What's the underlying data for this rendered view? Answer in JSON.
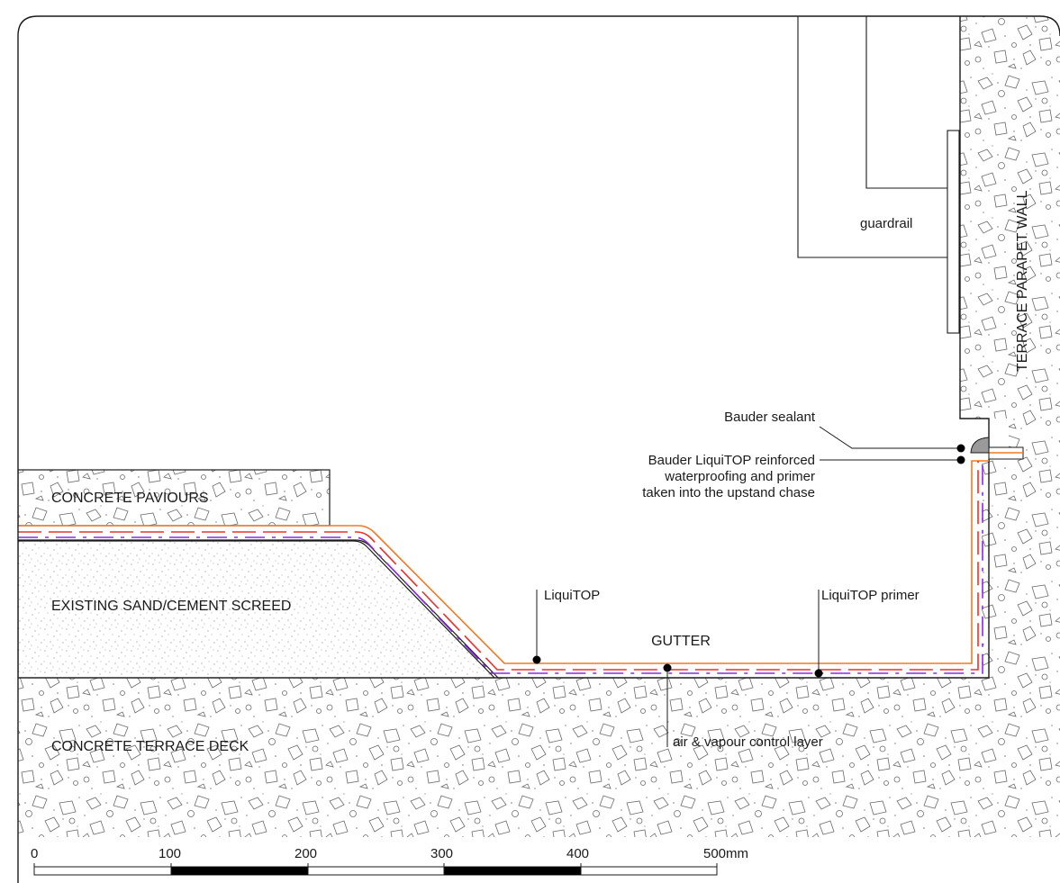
{
  "labels": {
    "parapet": "TERRACE PARAPET WALL",
    "guardrail": "guardrail",
    "pavers": "CONCRETE PAVIOURS",
    "screed": "EXISTING SAND/CEMENT SCREED",
    "deck": "CONCRETE TERRACE DECK",
    "gutter": "GUTTER",
    "liquitop": "LiquiTOP",
    "primer": "LiquiTOP primer",
    "avcl": "air & vapour control layer",
    "sealant": "Bauder sealant",
    "waterproofing_line1": "Bauder LiquiTOP reinforced",
    "waterproofing_line2": "waterproofing and primer",
    "waterproofing_line3": "taken into the upstand chase"
  },
  "scale_bar": {
    "ticks": [
      "0",
      "100",
      "200",
      "300",
      "400",
      "500mm"
    ]
  },
  "colors": {
    "membrane": "#f07a24",
    "primer": "#e8332c",
    "avcl": "#8a2be2",
    "hatch": "#555555"
  }
}
